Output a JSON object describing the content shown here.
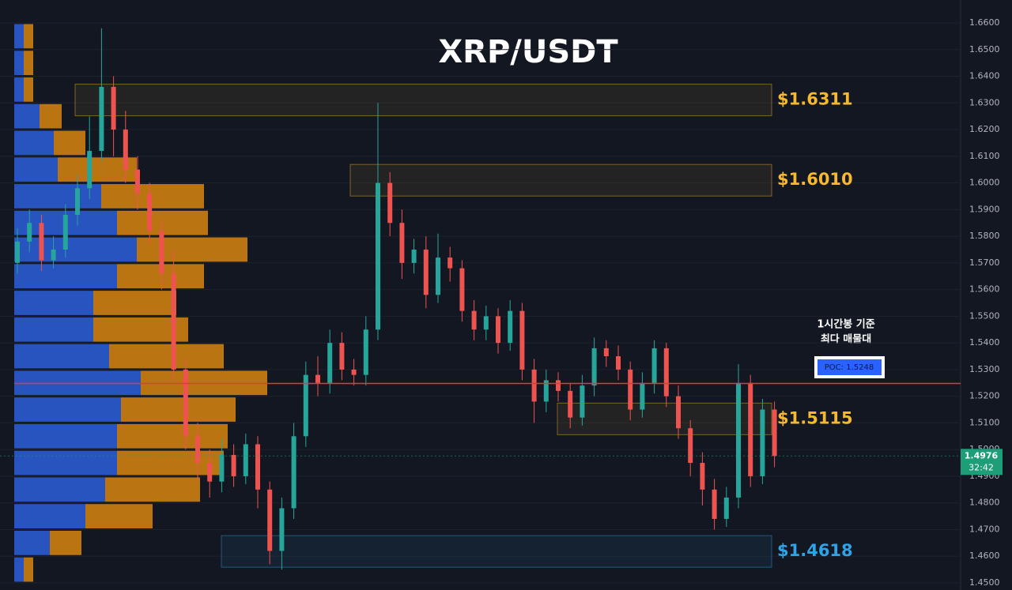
{
  "chart_data": {
    "type": "candlestick",
    "title": "XRP/USDT",
    "open": [
      1.57,
      1.578,
      1.585,
      1.571,
      1.575,
      1.588,
      1.598,
      1.612,
      1.636,
      1.62,
      1.605,
      1.596,
      1.582,
      1.566,
      1.53,
      1.505,
      1.495,
      1.488,
      1.498,
      1.49,
      1.502,
      1.485,
      1.462,
      1.478,
      1.505,
      1.528,
      1.525,
      1.54,
      1.53,
      1.528,
      1.545,
      1.6,
      1.585,
      1.57,
      1.575,
      1.558,
      1.572,
      1.568,
      1.552,
      1.545,
      1.55,
      1.54,
      1.552,
      1.53,
      1.518,
      1.526,
      1.522,
      1.512,
      1.524,
      1.538,
      1.535,
      1.53,
      1.515,
      1.525,
      1.538,
      1.52,
      1.508,
      1.495,
      1.485,
      1.474,
      1.482,
      1.525,
      1.49,
      1.515
    ],
    "high": [
      1.583,
      1.59,
      1.588,
      1.58,
      1.592,
      1.603,
      1.625,
      1.658,
      1.64,
      1.627,
      1.61,
      1.6,
      1.586,
      1.575,
      1.534,
      1.51,
      1.5,
      1.504,
      1.502,
      1.506,
      1.505,
      1.488,
      1.482,
      1.51,
      1.533,
      1.535,
      1.545,
      1.544,
      1.534,
      1.55,
      1.63,
      1.604,
      1.59,
      1.579,
      1.58,
      1.581,
      1.576,
      1.571,
      1.556,
      1.554,
      1.553,
      1.556,
      1.555,
      1.534,
      1.53,
      1.529,
      1.525,
      1.528,
      1.542,
      1.541,
      1.539,
      1.533,
      1.529,
      1.541,
      1.54,
      1.524,
      1.511,
      1.499,
      1.489,
      1.486,
      1.532,
      1.528,
      1.519,
      1.518
    ],
    "low": [
      1.566,
      1.574,
      1.567,
      1.568,
      1.572,
      1.584,
      1.594,
      1.608,
      1.61,
      1.6,
      1.59,
      1.577,
      1.56,
      1.526,
      1.5,
      1.488,
      1.482,
      1.484,
      1.486,
      1.487,
      1.478,
      1.457,
      1.455,
      1.474,
      1.501,
      1.52,
      1.521,
      1.526,
      1.524,
      1.524,
      1.541,
      1.58,
      1.564,
      1.566,
      1.553,
      1.555,
      1.563,
      1.548,
      1.541,
      1.541,
      1.536,
      1.537,
      1.526,
      1.51,
      1.514,
      1.518,
      1.508,
      1.509,
      1.52,
      1.531,
      1.526,
      1.511,
      1.512,
      1.521,
      1.516,
      1.504,
      1.49,
      1.479,
      1.47,
      1.471,
      1.478,
      1.486,
      1.487,
      1.4934
    ],
    "close": [
      1.578,
      1.585,
      1.571,
      1.575,
      1.588,
      1.598,
      1.612,
      1.636,
      1.62,
      1.605,
      1.596,
      1.582,
      1.566,
      1.53,
      1.505,
      1.495,
      1.488,
      1.498,
      1.49,
      1.502,
      1.485,
      1.462,
      1.478,
      1.505,
      1.528,
      1.525,
      1.54,
      1.53,
      1.528,
      1.545,
      1.6,
      1.585,
      1.57,
      1.575,
      1.558,
      1.572,
      1.568,
      1.552,
      1.545,
      1.55,
      1.54,
      1.552,
      1.53,
      1.518,
      1.526,
      1.522,
      1.512,
      1.524,
      1.538,
      1.535,
      1.53,
      1.515,
      1.525,
      1.538,
      1.52,
      1.508,
      1.495,
      1.485,
      1.474,
      1.482,
      1.525,
      1.49,
      1.515,
      1.4976
    ],
    "up_color": "#26a69a",
    "down_color": "#ef5350",
    "ylim": [
      1.45,
      1.66
    ],
    "yticks": [
      {
        "value": 1.66,
        "label": "1.6600"
      },
      {
        "value": 1.65,
        "label": "1.6500"
      },
      {
        "value": 1.64,
        "label": "1.6400"
      },
      {
        "value": 1.63,
        "label": "1.6300"
      },
      {
        "value": 1.62,
        "label": "1.6200"
      },
      {
        "value": 1.61,
        "label": "1.6100"
      },
      {
        "value": 1.6,
        "label": "1.6000"
      },
      {
        "value": 1.59,
        "label": "1.5900"
      },
      {
        "value": 1.58,
        "label": "1.5800"
      },
      {
        "value": 1.57,
        "label": "1.5700"
      },
      {
        "value": 1.56,
        "label": "1.5600"
      },
      {
        "value": 1.55,
        "label": "1.5500"
      },
      {
        "value": 1.54,
        "label": "1.5400"
      },
      {
        "value": 1.53,
        "label": "1.5300"
      },
      {
        "value": 1.52,
        "label": "1.5200"
      },
      {
        "value": 1.51,
        "label": "1.5100"
      },
      {
        "value": 1.5,
        "label": "1.5000"
      },
      {
        "value": 1.49,
        "label": "1.4900"
      },
      {
        "value": 1.48,
        "label": "1.4800"
      },
      {
        "value": 1.47,
        "label": "1.4700"
      },
      {
        "value": 1.46,
        "label": "1.4600"
      },
      {
        "value": 1.45,
        "label": "1.4500"
      }
    ],
    "grid": true,
    "volume_profile": {
      "price_low": [
        1.65,
        1.64,
        1.63,
        1.62,
        1.61,
        1.6,
        1.59,
        1.58,
        1.57,
        1.56,
        1.55,
        1.54,
        1.53,
        1.52,
        1.51,
        1.5,
        1.49,
        1.48,
        1.47,
        1.46,
        1.45
      ],
      "buy": [
        12,
        12,
        12,
        32,
        50,
        55,
        110,
        130,
        155,
        130,
        100,
        100,
        120,
        160,
        135,
        130,
        130,
        115,
        90,
        45,
        12
      ],
      "sell": [
        12,
        12,
        12,
        28,
        40,
        100,
        130,
        115,
        140,
        110,
        105,
        120,
        145,
        160,
        145,
        140,
        135,
        120,
        85,
        40,
        12
      ],
      "buy_color": "#2b5fdb",
      "sell_color": "#d8860f"
    },
    "zones": {
      "values": [
        1.6311,
        1.601,
        1.5115,
        1.4618
      ],
      "value_labels": [
        "$1.6311",
        "$1.6010",
        "$1.5115",
        "$1.4618"
      ],
      "colors": [
        "#f5b82e",
        "#f5b82e",
        "#f5b82e",
        "#2ea3e8"
      ]
    },
    "poc": {
      "value": 1.5248,
      "value_label": "POC: 1.5248",
      "color": "#e53935"
    },
    "annotation": [
      "1시간봉 기준",
      "최다 매물대"
    ],
    "last_price": {
      "value": 1.4976,
      "countdown": "32:42",
      "color": "#1e9e78"
    }
  }
}
